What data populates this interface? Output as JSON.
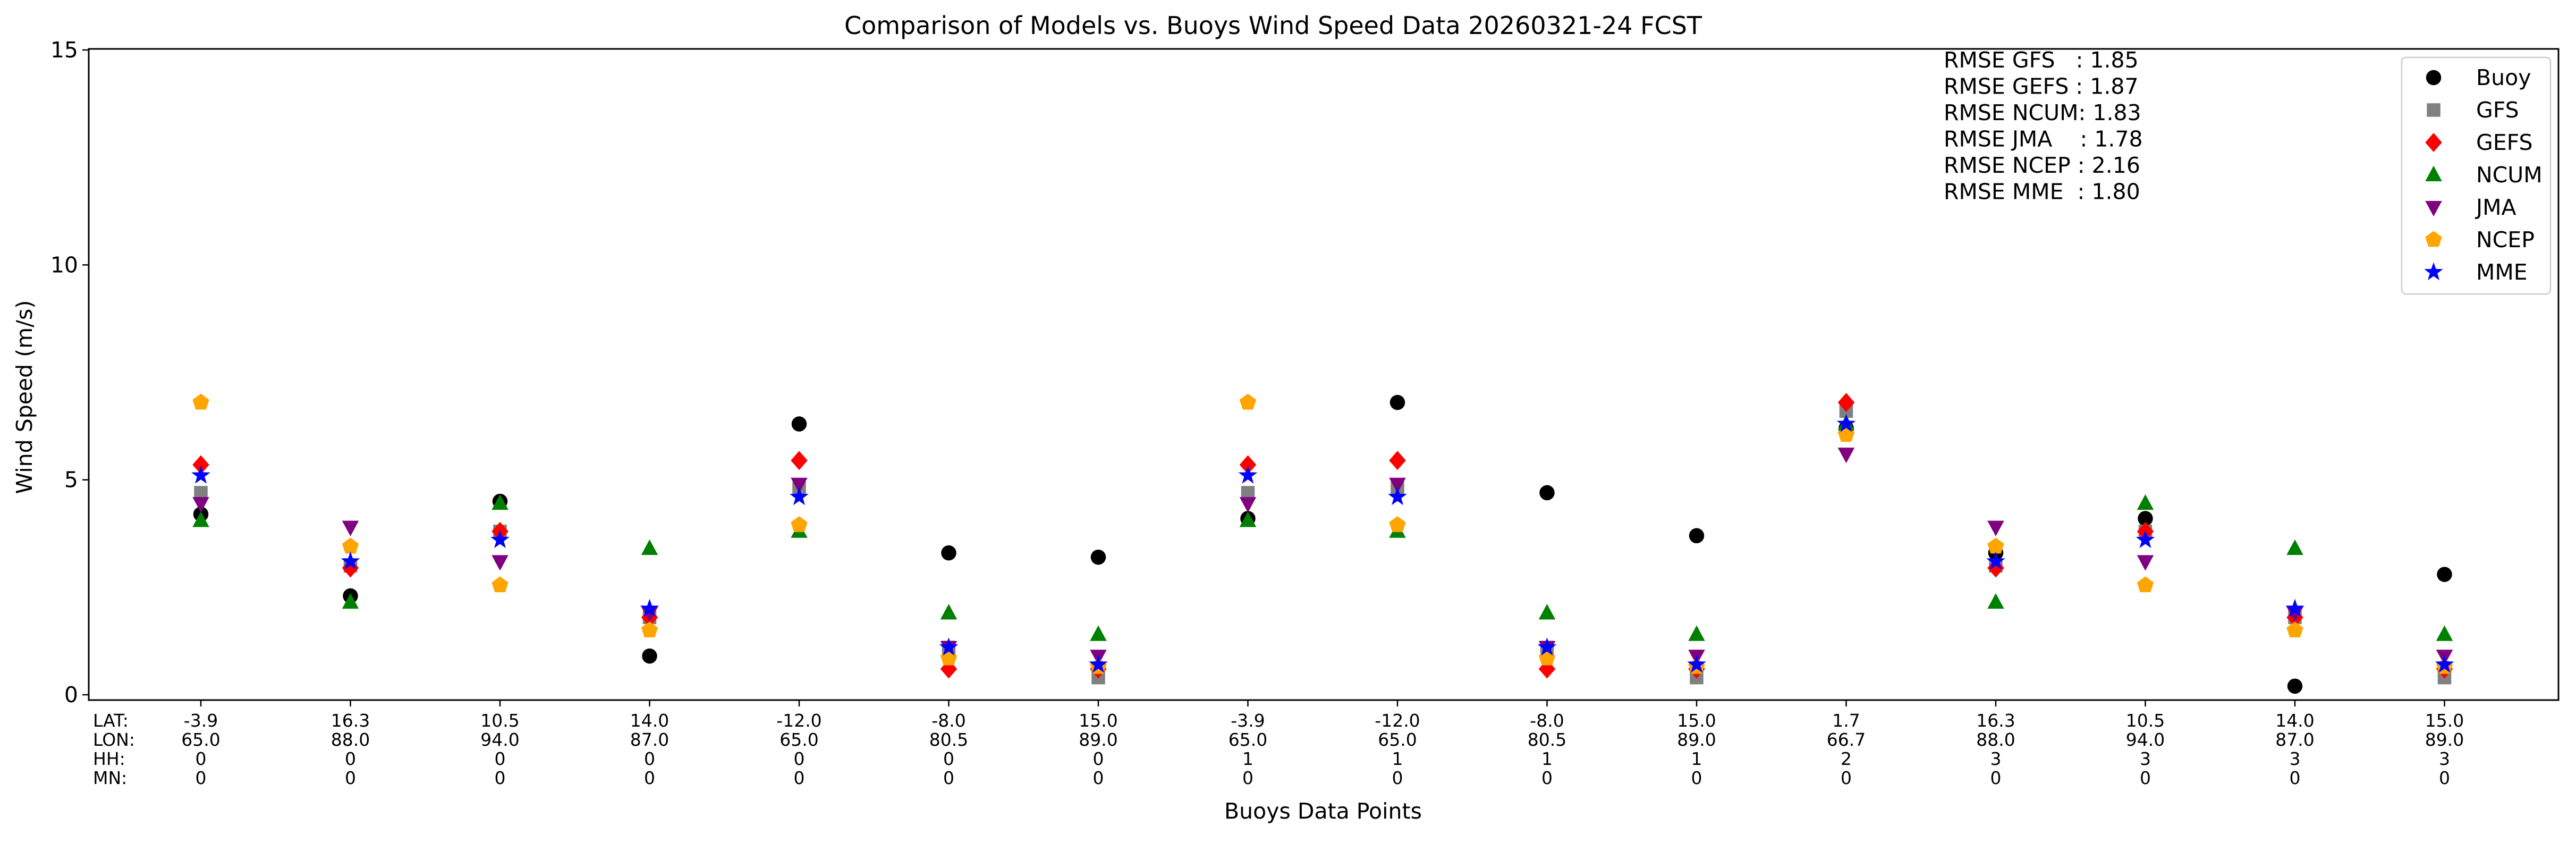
{
  "chart_data": {
    "type": "scatter",
    "title": "Comparison of Models vs. Buoys Wind Speed Data 20260321-24 FCST",
    "xlabel": "Buoys Data Points",
    "ylabel": "Wind Speed (m/s)",
    "ylim": [
      0,
      15
    ],
    "yticks": [
      0,
      5,
      10,
      15
    ],
    "grid": false,
    "legend_position": "top-right",
    "x_row_labels": [
      "LAT:",
      "LON:",
      "HH:",
      "MN:"
    ],
    "x_points": [
      {
        "lat": "-3.9",
        "lon": "65.0",
        "hh": "0",
        "mn": "0"
      },
      {
        "lat": "16.3",
        "lon": "88.0",
        "hh": "0",
        "mn": "0"
      },
      {
        "lat": "10.5",
        "lon": "94.0",
        "hh": "0",
        "mn": "0"
      },
      {
        "lat": "14.0",
        "lon": "87.0",
        "hh": "0",
        "mn": "0"
      },
      {
        "lat": "-12.0",
        "lon": "65.0",
        "hh": "0",
        "mn": "0"
      },
      {
        "lat": "-8.0",
        "lon": "80.5",
        "hh": "0",
        "mn": "0"
      },
      {
        "lat": "15.0",
        "lon": "89.0",
        "hh": "0",
        "mn": "0"
      },
      {
        "lat": "-3.9",
        "lon": "65.0",
        "hh": "1",
        "mn": "0"
      },
      {
        "lat": "-12.0",
        "lon": "65.0",
        "hh": "1",
        "mn": "0"
      },
      {
        "lat": "-8.0",
        "lon": "80.5",
        "hh": "1",
        "mn": "0"
      },
      {
        "lat": "15.0",
        "lon": "89.0",
        "hh": "1",
        "mn": "0"
      },
      {
        "lat": "1.7",
        "lon": "66.7",
        "hh": "2",
        "mn": "0"
      },
      {
        "lat": "16.3",
        "lon": "88.0",
        "hh": "3",
        "mn": "0"
      },
      {
        "lat": "10.5",
        "lon": "94.0",
        "hh": "3",
        "mn": "0"
      },
      {
        "lat": "14.0",
        "lon": "87.0",
        "hh": "3",
        "mn": "0"
      },
      {
        "lat": "15.0",
        "lon": "89.0",
        "hh": "3",
        "mn": "0"
      }
    ],
    "series": [
      {
        "name": "Buoy",
        "marker": "circle",
        "color": "#000000",
        "values": [
          4.2,
          2.3,
          4.5,
          0.9,
          6.3,
          3.3,
          3.2,
          4.1,
          6.8,
          4.7,
          3.7,
          6.2,
          3.3,
          4.1,
          0.2,
          2.8
        ]
      },
      {
        "name": "GFS",
        "marker": "square",
        "color": "#808080",
        "values": [
          4.7,
          3.0,
          3.8,
          1.8,
          4.8,
          1.1,
          0.4,
          4.7,
          4.8,
          1.1,
          0.4,
          6.6,
          3.0,
          3.8,
          1.8,
          0.4
        ]
      },
      {
        "name": "GEFS",
        "marker": "diamond",
        "color": "#ff0000",
        "values": [
          5.35,
          2.95,
          3.8,
          1.8,
          5.45,
          0.6,
          0.6,
          5.35,
          5.45,
          0.6,
          0.6,
          6.8,
          2.95,
          3.8,
          1.8,
          0.6
        ]
      },
      {
        "name": "NCUM",
        "marker": "triangle-up",
        "color": "#008000",
        "values": [
          4.05,
          2.15,
          4.45,
          3.4,
          3.8,
          1.9,
          1.4,
          4.05,
          3.8,
          1.9,
          1.4,
          6.3,
          2.15,
          4.45,
          3.4,
          1.4
        ]
      },
      {
        "name": "JMA",
        "marker": "triangle-down",
        "color": "#800080",
        "values": [
          4.45,
          3.9,
          3.1,
          1.9,
          4.9,
          1.1,
          0.9,
          4.45,
          4.9,
          1.1,
          0.9,
          5.6,
          3.9,
          3.1,
          1.9,
          0.9
        ]
      },
      {
        "name": "NCEP",
        "marker": "pentagon",
        "color": "#ffa500",
        "values": [
          6.8,
          3.45,
          2.55,
          1.5,
          3.95,
          0.85,
          0.65,
          6.8,
          3.95,
          0.85,
          0.65,
          6.05,
          3.45,
          2.55,
          1.5,
          0.65
        ]
      },
      {
        "name": "MME",
        "marker": "star",
        "color": "#0000ff",
        "values": [
          5.1,
          3.1,
          3.6,
          2.0,
          4.6,
          1.1,
          0.7,
          5.1,
          4.6,
          1.1,
          0.7,
          6.3,
          3.1,
          3.6,
          2.0,
          0.7
        ]
      }
    ],
    "annotations": [
      "RMSE GFS   : 1.85",
      "RMSE GEFS : 1.87",
      "RMSE NCUM: 1.83",
      "RMSE JMA    : 1.78",
      "RMSE NCEP : 2.16",
      "RMSE MME  : 1.80"
    ]
  }
}
